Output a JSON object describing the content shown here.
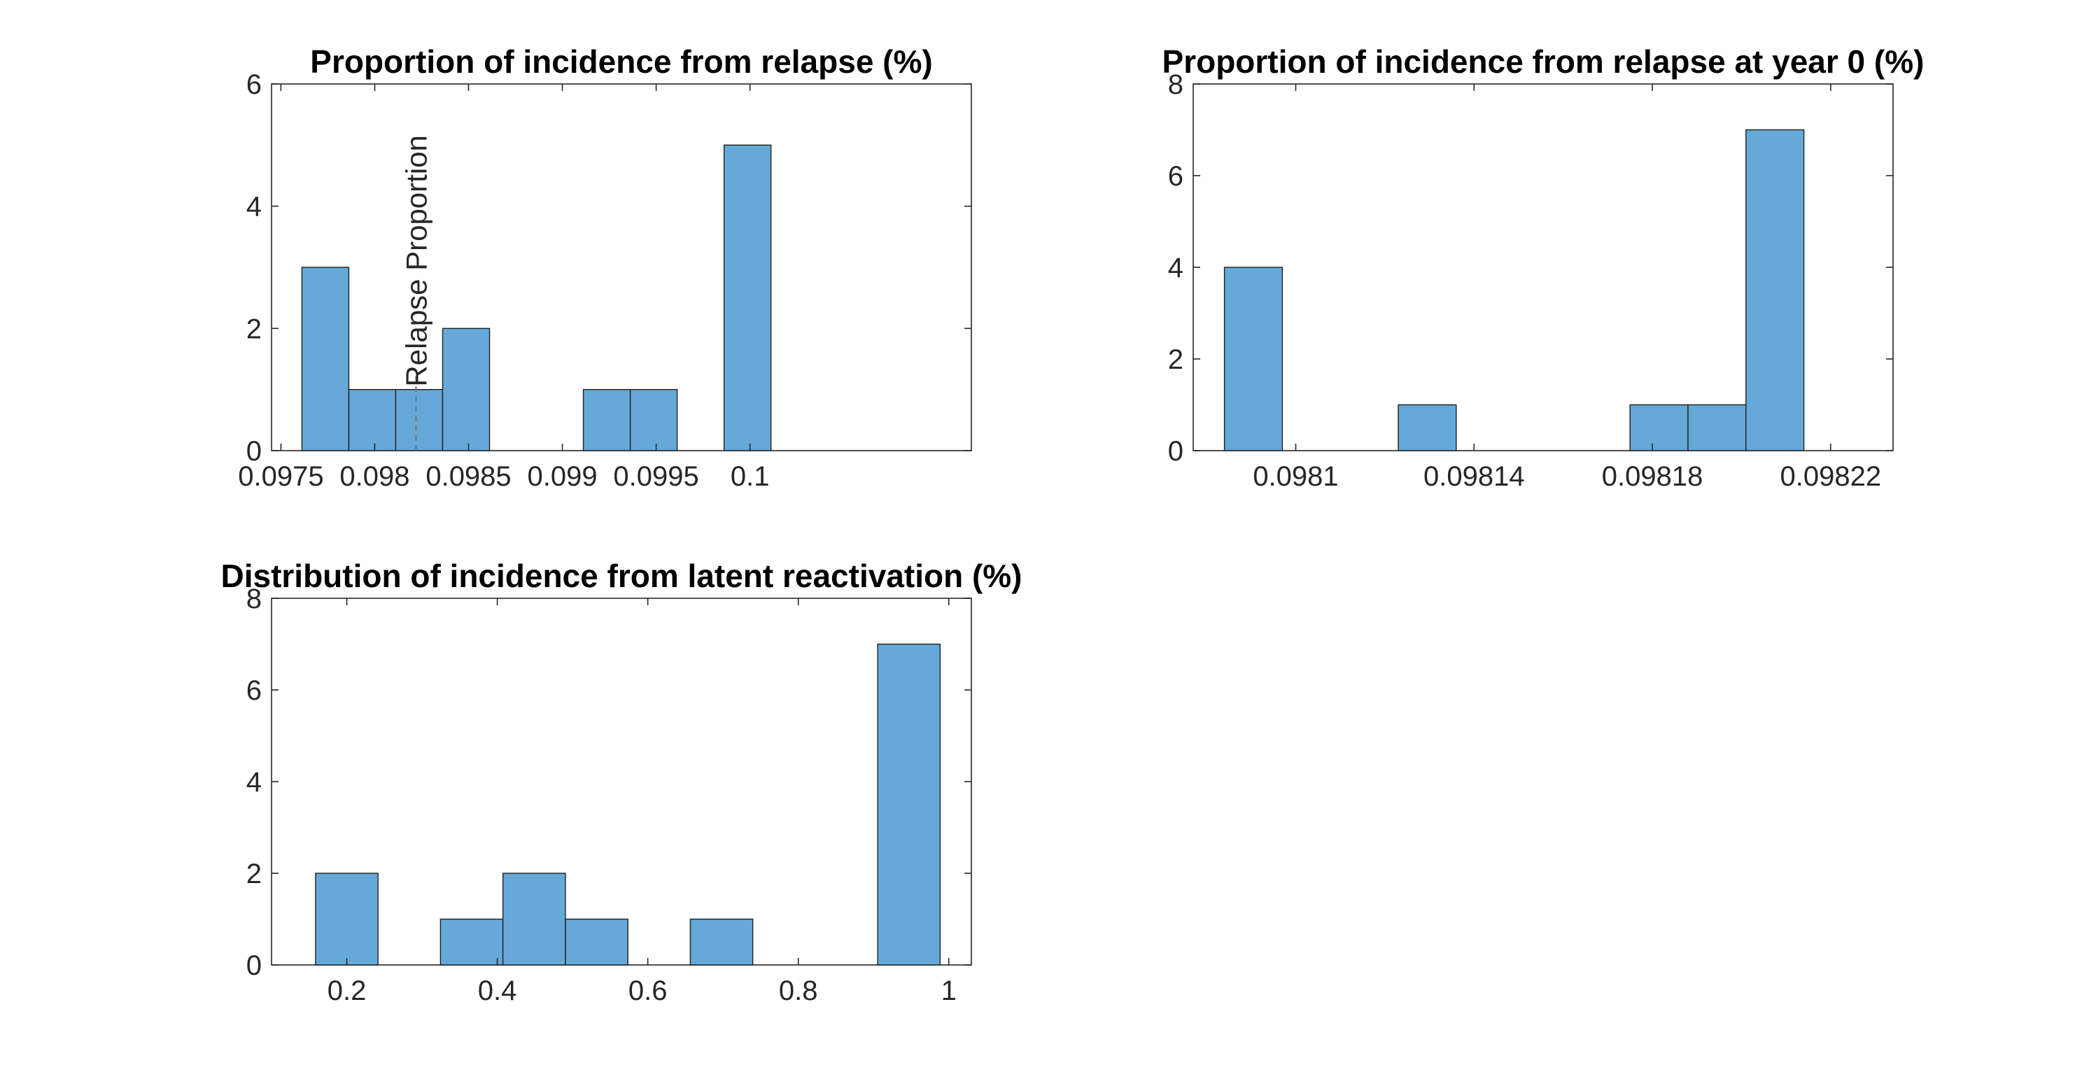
{
  "chart_data": [
    {
      "type": "bar",
      "title": "Proportion of incidence from relapse (%)",
      "xlabel": "",
      "ylabel": "",
      "xlim": [
        0.09745,
        0.10118
      ],
      "ylim": [
        0,
        6
      ],
      "xticks": [
        0.0975,
        0.098,
        0.0985,
        0.099,
        0.0995,
        0.1
      ],
      "xtick_labels": [
        "0.0975",
        "0.098",
        "0.0985",
        "0.099",
        "0.0995",
        "0.1"
      ],
      "yticks": [
        0,
        2,
        4,
        6
      ],
      "ytick_labels": [
        "0",
        "2",
        "4",
        "6"
      ],
      "bin_edges": [
        0.097612,
        0.097862,
        0.098112,
        0.098362,
        0.098612,
        0.098862,
        0.099112,
        0.099362,
        0.099612,
        0.099862,
        0.100112
      ],
      "values": [
        3,
        1,
        1,
        2,
        0,
        0,
        1,
        1,
        0,
        5
      ],
      "annotation": {
        "text": "Relapse Proportion",
        "x": 0.09822
      },
      "grid": false
    },
    {
      "type": "bar",
      "title": "Proportion of incidence from relapse at year 0 (%)",
      "xlabel": "",
      "ylabel": "",
      "xlim": [
        0.098077,
        0.098234
      ],
      "ylim": [
        0,
        8
      ],
      "xticks": [
        0.0981,
        0.09814,
        0.09818,
        0.09822
      ],
      "xtick_labels": [
        "0.0981",
        "0.09814",
        "0.09818",
        "0.09822"
      ],
      "yticks": [
        0,
        2,
        4,
        6,
        8
      ],
      "ytick_labels": [
        "0",
        "2",
        "4",
        "6",
        "8"
      ],
      "bin_edges": [
        0.098084,
        0.098097,
        0.09811,
        0.098123,
        0.098136,
        0.098149,
        0.098162,
        0.098175,
        0.098188,
        0.098201,
        0.098214
      ],
      "values": [
        4,
        0,
        0,
        1,
        0,
        0,
        0,
        1,
        1,
        7
      ],
      "grid": false
    },
    {
      "type": "bar",
      "title": "Distribution of incidence from latent reactivation (%)",
      "xlabel": "",
      "ylabel": "",
      "xlim": [
        0.1,
        1.03
      ],
      "ylim": [
        0,
        8
      ],
      "xticks": [
        0.2,
        0.4,
        0.6,
        0.8,
        1
      ],
      "xtick_labels": [
        "0.2",
        "0.4",
        "0.6",
        "0.8",
        "1"
      ],
      "yticks": [
        0,
        2,
        4,
        6,
        8
      ],
      "ytick_labels": [
        "0",
        "2",
        "4",
        "6",
        "8"
      ],
      "bin_edges": [
        0.1585,
        0.2415,
        0.3245,
        0.4075,
        0.4905,
        0.5735,
        0.6565,
        0.7395,
        0.8225,
        0.9055,
        0.9885
      ],
      "values": [
        2,
        0,
        1,
        2,
        1,
        0,
        1,
        0,
        0,
        7
      ],
      "grid": false
    }
  ],
  "colors": {
    "bar_fill": "#65a9d8",
    "bar_edge": "#1f1f1f",
    "axis": "#262626",
    "annotation_line": "#707070"
  }
}
